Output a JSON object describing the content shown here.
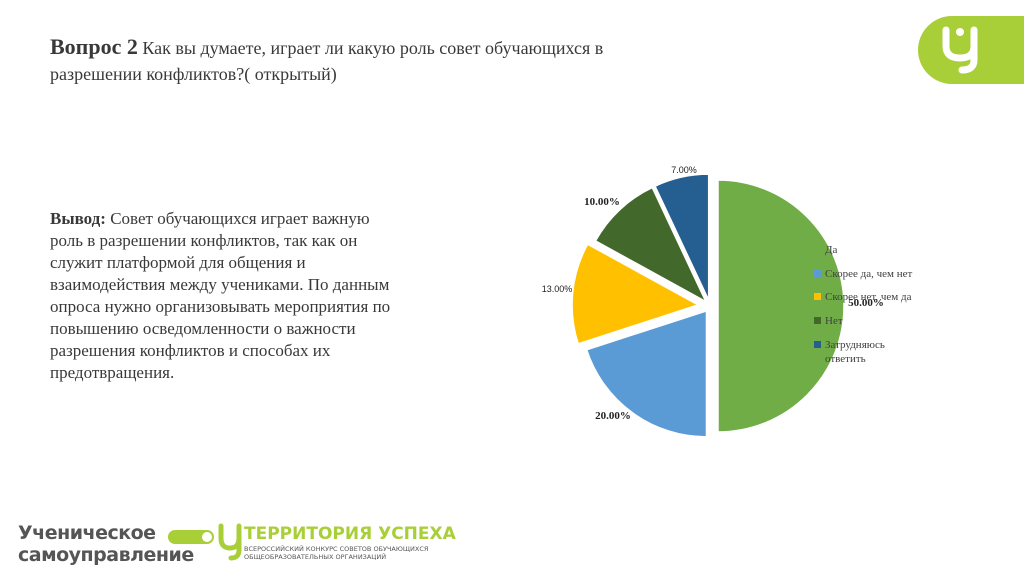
{
  "header": {
    "question_label": "Вопрос 2",
    "question_text": " Как вы думаете,  играет ли какую роль совет обучающихся в разрешении конфликтов?( открытый)"
  },
  "conclusion": {
    "label": "Вывод:",
    "text": " Совет обучающихся играет важную роль в разрешении конфликтов, так как он служит платформой для общения и взаимодействия между учениками. По данным опроса нужно организовывать мероприятия по повышению осведомленности о важности разрешения конфликтов и способах их предотвращения."
  },
  "footer": {
    "brand1_line1": "Ученическое",
    "brand1_line2": "самоуправление",
    "brand2_title": "ТЕРРИТОРИЯ УСПЕХА",
    "brand2_sub1": "ВСЕРОССИЙСКИЙ КОНКУРС СОВЕТОВ ОБУЧАЮЩИХСЯ",
    "brand2_sub2": "ОБЩЕОБРАЗОВАТЕЛЬНЫХ ОРГАНИЗАЦИЙ"
  },
  "colors": {
    "accent": "#a9cf38",
    "text": "#3b3838"
  },
  "chart_data": {
    "type": "pie",
    "title": "",
    "legend_position": "right",
    "slices": [
      {
        "label": "Да",
        "value": 50,
        "value_label": "50.00%",
        "color": "#70ad47"
      },
      {
        "label": "Скорее да, чем нет",
        "value": 20,
        "value_label": "20.00%",
        "color": "#5b9bd5"
      },
      {
        "label": "Скорее нет, чем да",
        "value": 13,
        "value_label": "13.00%",
        "color": "#ffc000"
      },
      {
        "label": "Нет",
        "value": 10,
        "value_label": "10.00%",
        "color": "#43682b"
      },
      {
        "label": "Затрудняюсь ответить",
        "value": 7,
        "value_label": "7.00%",
        "color": "#255e91"
      }
    ]
  }
}
